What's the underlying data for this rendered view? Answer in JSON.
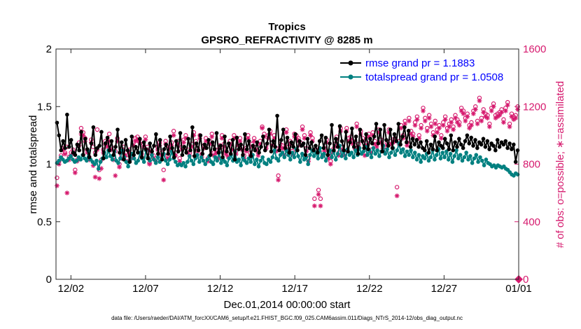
{
  "chart_data": {
    "type": "line",
    "title_lines": [
      "Tropics",
      "GPSRO_REFRACTIVITY @ 8285 m"
    ],
    "xlabel": "Dec.01,2014 00:00:00 start",
    "ylabel_left": "rmse and totalspread",
    "ylabel_right": "# of obs: o=possible; ∗=assimilated",
    "footer": "data file: /Users/raeder/DAI/ATM_forcXX/CAM6_setup/f.e21.FHIST_BGC.f09_025.CAM6assim.011/Diags_NTrS_2014-12/obs_diag_output.nc",
    "xlim": [
      0,
      31
    ],
    "x_ticks": [
      {
        "value": 1,
        "label": "12/02"
      },
      {
        "value": 6,
        "label": "12/07"
      },
      {
        "value": 11,
        "label": "12/12"
      },
      {
        "value": 16,
        "label": "12/17"
      },
      {
        "value": 21,
        "label": "12/22"
      },
      {
        "value": 26,
        "label": "12/27"
      },
      {
        "value": 31,
        "label": "01/01"
      }
    ],
    "ylim_left": [
      0,
      2
    ],
    "left_ticks": [
      "0",
      "0.5",
      "1",
      "1.5",
      "2"
    ],
    "ylim_right": [
      0,
      1600
    ],
    "right_ticks": [
      "0",
      "400",
      "800",
      "1200",
      "1600"
    ],
    "colors": {
      "rmse": "#000000",
      "spread": "#008080",
      "obs": "#d61a6e",
      "legend_text": "#0000ff"
    },
    "series": [
      {
        "name": "rmse grand pr = 1.1883",
        "axis": "left",
        "marker": "filled-circle",
        "values": [
          1.36,
          1.25,
          1.12,
          1.2,
          1.14,
          1.43,
          1.15,
          1.21,
          1.1,
          1.08,
          1.17,
          1.12,
          1.28,
          1.08,
          1.22,
          1.13,
          1.06,
          1.18,
          1.32,
          1.08,
          1.14,
          1.16,
          1.28,
          1.05,
          1.18,
          1.23,
          1.12,
          1.2,
          1.08,
          1.15,
          1.3,
          1.1,
          1.19,
          1.04,
          1.21,
          1.12,
          1.02,
          1.24,
          1.08,
          1.15,
          1.1,
          1.22,
          1.06,
          1.19,
          1.13,
          1.05,
          1.18,
          1.11,
          1.16,
          1.26,
          1.09,
          1.21,
          1.04,
          1.13,
          1.17,
          1.09,
          1.24,
          1.14,
          1.06,
          1.2,
          1.11,
          1.27,
          1.08,
          1.15,
          1.1,
          1.22,
          1.12,
          1.32,
          1.07,
          1.18,
          1.12,
          1.25,
          1.09,
          1.17,
          1.14,
          1.21,
          1.08,
          1.19,
          1.13,
          1.27,
          1.1,
          1.16,
          1.06,
          1.24,
          1.11,
          1.18,
          1.09,
          1.21,
          1.04,
          1.23,
          1.13,
          1.17,
          1.08,
          1.26,
          1.13,
          1.2,
          1.07,
          1.16,
          1.12,
          1.19,
          1.1,
          1.15,
          1.24,
          1.12,
          1.18,
          1.3,
          1.11,
          1.2,
          1.15,
          1.42,
          1.12,
          1.21,
          1.3,
          1.14,
          1.23,
          1.1,
          1.19,
          1.15,
          1.26,
          1.12,
          1.2,
          1.16,
          1.18,
          1.08,
          1.22,
          1.14,
          1.19,
          1.12,
          1.16,
          1.1,
          1.2,
          1.25,
          1.14,
          1.23,
          1.08,
          1.18,
          1.34,
          1.12,
          1.22,
          1.15,
          1.33,
          1.2,
          1.12,
          1.28,
          1.11,
          1.19,
          1.31,
          1.15,
          1.24,
          1.09,
          1.3,
          1.2,
          1.14,
          1.26,
          1.13,
          1.22,
          1.18,
          1.24,
          1.35,
          1.18,
          1.3,
          1.11,
          1.34,
          1.21,
          1.16,
          1.3,
          1.14,
          1.26,
          1.2,
          1.35,
          1.17,
          1.24,
          1.32,
          1.19,
          1.29,
          1.15,
          1.22,
          1.17,
          1.21,
          1.15,
          1.19,
          1.14,
          1.12,
          1.2,
          1.1,
          1.17,
          1.13,
          1.24,
          1.12,
          1.19,
          1.16,
          1.14,
          1.22,
          1.18,
          1.13,
          1.25,
          1.12,
          1.19,
          1.15,
          1.22,
          1.17,
          1.14,
          1.2,
          1.25,
          1.18,
          1.23,
          1.16,
          1.21,
          1.14,
          1.19,
          1.17,
          1.22,
          1.15,
          1.2,
          1.13,
          1.18,
          1.16,
          1.12,
          1.21,
          1.15,
          1.19,
          1.17,
          1.2,
          1.14,
          1.18,
          1.13,
          1.17,
          1.02,
          1.12
        ]
      },
      {
        "name": "totalspread grand pr = 1.0508",
        "axis": "left",
        "marker": "filled-circle",
        "values": [
          1.01,
          1.03,
          1.06,
          1.04,
          1.02,
          1.03,
          1.05,
          1.07,
          1.04,
          1.02,
          1.03,
          1.06,
          1.04,
          1.08,
          1.05,
          1.03,
          1.11,
          1.04,
          1.02,
          1.0,
          1.03,
          0.96,
          1.02,
          1.05,
          1.1,
          1.06,
          1.12,
          1.07,
          1.04,
          1.11,
          1.03,
          1.01,
          1.05,
          1.12,
          1.06,
          1.02,
          0.98,
          1.04,
          1.09,
          1.05,
          1.01,
          1.03,
          1.1,
          1.05,
          1.02,
          1.12,
          1.06,
          1.03,
          1.08,
          1.04,
          1.01,
          1.06,
          1.02,
          1.05,
          1.09,
          1.03,
          1.0,
          1.04,
          1.11,
          1.05,
          1.02,
          0.99,
          1.0,
          0.99,
          1.01,
          0.98,
          1.02,
          1.07,
          1.03,
          1.0,
          1.05,
          1.08,
          1.02,
          1.06,
          1.03,
          1.0,
          1.04,
          1.07,
          1.02,
          1.0,
          1.06,
          1.03,
          1.1,
          1.01,
          1.04,
          1.02,
          0.99,
          1.05,
          1.08,
          1.03,
          1.11,
          1.02,
          1.04,
          0.99,
          1.06,
          1.03,
          1.01,
          1.05,
          1.02,
          1.08,
          1.0,
          1.04,
          0.98,
          1.03,
          1.06,
          1.01,
          1.0,
          1.04,
          1.02,
          1.06,
          1.12,
          1.05,
          1.03,
          1.08,
          1.1,
          1.06,
          1.12,
          1.08,
          1.04,
          1.1,
          1.06,
          1.13,
          1.07,
          1.02,
          1.09,
          1.04,
          1.06,
          1.0,
          1.08,
          1.12,
          1.07,
          1.1,
          1.05,
          1.14,
          1.06,
          1.09,
          1.03,
          1.08,
          1.12,
          1.06,
          1.11,
          1.04,
          1.09,
          1.16,
          1.07,
          1.11,
          1.05,
          1.13,
          1.08,
          1.1,
          1.06,
          1.12,
          1.08,
          1.14,
          1.09,
          1.11,
          1.15,
          1.08,
          1.12,
          1.06,
          1.14,
          1.09,
          1.12,
          1.07,
          1.11,
          1.16,
          1.09,
          1.13,
          1.06,
          1.1,
          1.14,
          1.08,
          1.12,
          1.18,
          1.1,
          1.13,
          1.07,
          1.11,
          1.08,
          1.12,
          1.06,
          1.1,
          1.04,
          1.08,
          1.02,
          1.07,
          1.05,
          1.09,
          1.03,
          1.06,
          1.12,
          1.04,
          1.08,
          1.13,
          1.05,
          1.1,
          1.06,
          1.11,
          1.04,
          1.09,
          1.02,
          1.07,
          1.12,
          1.05,
          1.08,
          1.03,
          1.06,
          1.1,
          1.04,
          1.07,
          1.01,
          1.05,
          1.08,
          1.02,
          1.06,
          1.03,
          0.99,
          1.04,
          1.01,
          1.0,
          0.98,
          0.99,
          0.97,
          0.99,
          0.98,
          0.97,
          0.98,
          0.96,
          0.95,
          0.93,
          0.91,
          0.9,
          0.92,
          0.91
        ]
      },
      {
        "name": "possible obs",
        "axis": "right",
        "marker": "open-circle",
        "values": [
          705,
          820,
          860,
          910,
          880,
          920,
          850,
          880,
          900,
          760,
          830,
          950,
          1050,
          1020,
          980,
          900,
          850,
          970,
          920,
          880,
          1040,
          760,
          830,
          900,
          960,
          940,
          1010,
          920,
          850,
          890,
          980,
          800,
          860,
          920,
          880,
          840,
          900,
          860,
          950,
          980,
          990,
          970,
          870,
          940,
          990,
          920,
          810,
          890,
          860,
          840,
          920,
          950,
          880,
          760,
          960,
          860,
          920,
          950,
          1030,
          880,
          960,
          840,
          920,
          970,
          1000,
          900,
          880,
          940,
          1020,
          960,
          910,
          1000,
          870,
          930,
          980,
          840,
          960,
          1010,
          880,
          900,
          860,
          930,
          1000,
          940,
          890,
          870,
          960,
          920,
          1000,
          890,
          950,
          980,
          920,
          860,
          910,
          1000,
          880,
          940,
          980,
          920,
          880,
          960,
          1060,
          1010,
          930,
          1000,
          1030,
          950,
          1000,
          910,
          720,
          940,
          930,
          880,
          1040,
          920,
          960,
          890,
          1010,
          1000,
          980,
          950,
          1060,
          1000,
          910,
          840,
          1020,
          980,
          560,
          900,
          620,
          560,
          880,
          910,
          970,
          860,
          820,
          900,
          940,
          990,
          880,
          1050,
          920,
          880,
          1050,
          980,
          990,
          960,
          930,
          1080,
          940,
          1030,
          980,
          880,
          950,
          1010,
          900,
          1020,
          960,
          940,
          1040,
          970,
          930,
          900,
          950,
          1040,
          960,
          970,
          980,
          640,
          960,
          1070,
          1000,
          1100,
          950,
          1120,
          1030,
          1010,
          1090,
          1130,
          1000,
          1070,
          1190,
          1120,
          1050,
          1140,
          1080,
          1020,
          1100,
          1040,
          1070,
          1000,
          1090,
          1130,
          1050,
          1080,
          1110,
          1060,
          1140,
          1110,
          1090,
          1190,
          1170,
          1120,
          1150,
          1070,
          1090,
          1170,
          1200,
          1100,
          1260,
          1120,
          1180,
          1150,
          1140,
          1080,
          1190,
          1220,
          1140,
          1150,
          1160,
          1180,
          1110,
          1190,
          1230,
          1080,
          1150,
          1130,
          1140,
          1200
        ]
      },
      {
        "name": "assimilated obs",
        "axis": "right",
        "marker": "asterisk",
        "values": [
          650,
          800,
          845,
          900,
          870,
          600,
          830,
          860,
          880,
          740,
          820,
          930,
          1010,
          1000,
          960,
          880,
          830,
          950,
          790,
          710,
          900,
          700,
          770,
          880,
          940,
          920,
          960,
          900,
          830,
          720,
          960,
          780,
          840,
          900,
          860,
          820,
          880,
          840,
          930,
          960,
          970,
          950,
          850,
          920,
          970,
          900,
          800,
          870,
          840,
          820,
          900,
          930,
          860,
          690,
          940,
          840,
          900,
          930,
          1000,
          860,
          940,
          820,
          900,
          950,
          980,
          880,
          860,
          920,
          1000,
          940,
          890,
          980,
          850,
          910,
          960,
          820,
          940,
          990,
          860,
          880,
          840,
          910,
          980,
          920,
          870,
          850,
          940,
          900,
          980,
          870,
          930,
          960,
          900,
          840,
          890,
          980,
          860,
          920,
          960,
          900,
          860,
          940,
          1050,
          990,
          910,
          980,
          1010,
          930,
          980,
          890,
          690,
          920,
          910,
          860,
          1020,
          900,
          940,
          870,
          990,
          980,
          960,
          930,
          1040,
          980,
          890,
          820,
          1000,
          960,
          510,
          880,
          590,
          510,
          860,
          890,
          950,
          840,
          800,
          880,
          920,
          970,
          860,
          1030,
          900,
          860,
          1030,
          960,
          970,
          940,
          910,
          1060,
          920,
          1010,
          960,
          860,
          930,
          990,
          880,
          1000,
          940,
          920,
          1020,
          950,
          910,
          880,
          930,
          1020,
          940,
          950,
          960,
          580,
          940,
          1050,
          980,
          1080,
          930,
          1100,
          1010,
          990,
          1070,
          1110,
          980,
          1050,
          1170,
          1100,
          1030,
          1120,
          1060,
          1000,
          1080,
          1020,
          1050,
          980,
          1070,
          1110,
          1030,
          1060,
          1090,
          1040,
          1120,
          1090,
          1070,
          1170,
          1150,
          1100,
          1130,
          1050,
          1070,
          1150,
          1180,
          1080,
          1240,
          1100,
          1160,
          1130,
          1120,
          1060,
          1170,
          1200,
          1120,
          1130,
          1140,
          1160,
          1090,
          1170,
          1210,
          1060,
          1130,
          1110,
          1120,
          1180
        ]
      }
    ]
  }
}
